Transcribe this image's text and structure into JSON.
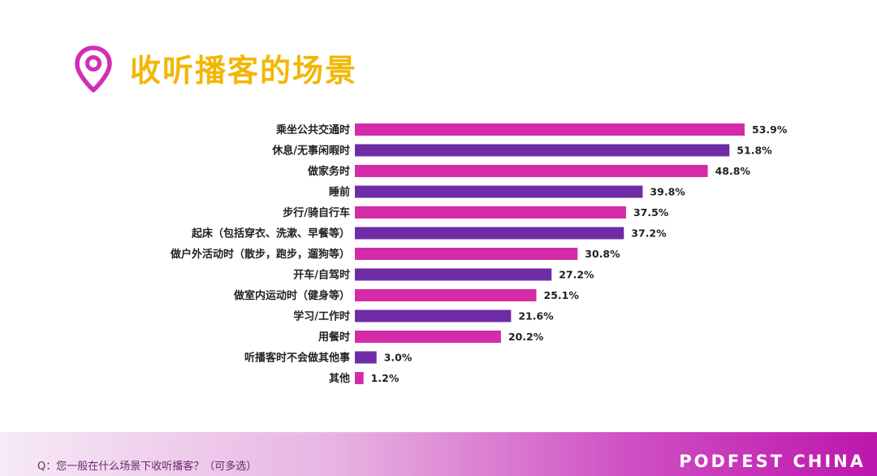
{
  "header": {
    "title": "收听播客的场景",
    "icon": "location-pin-icon",
    "title_color": "#F2B705",
    "icon_color": "#D12FB3"
  },
  "chart_data": {
    "type": "bar",
    "orientation": "horizontal",
    "title": "收听播客的场景",
    "xlabel": "",
    "ylabel": "",
    "xlim": [
      0,
      55
    ],
    "grid": false,
    "value_suffix": "%",
    "categories": [
      "乘坐公共交通时",
      "休息/无事闲暇时",
      "做家务时",
      "睡前",
      "步行/骑自行车",
      "起床（包括穿衣、洗漱、早餐等）",
      "做户外活动时（散步，跑步，遛狗等）",
      "开车/自驾时",
      "做室内运动时（健身等）",
      "学习/工作时",
      "用餐时",
      "听播客时不会做其他事",
      "其他"
    ],
    "values": [
      53.9,
      51.8,
      48.8,
      39.8,
      37.5,
      37.2,
      30.8,
      27.2,
      25.1,
      21.6,
      20.2,
      3.0,
      1.2
    ],
    "colors": [
      "#D42CA8",
      "#6E2CA6"
    ]
  },
  "footer": {
    "question": "Q：您一般在什么场景下收听播客？（可多选）",
    "brand": "PODFEST CHINA"
  }
}
